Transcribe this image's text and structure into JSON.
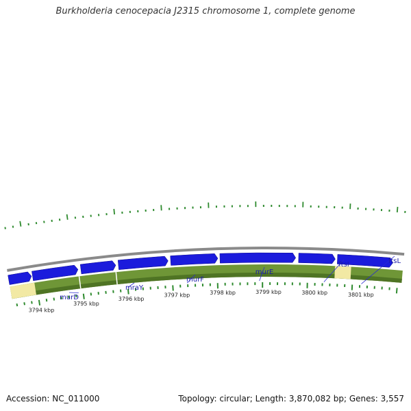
{
  "header": {
    "title": "Burkholderia cenocepacia J2315 chromosome 1, complete genome"
  },
  "footer": {
    "accession_label": "Accession: NC_011000",
    "summary": "Topology: circular; Length: 3,870,082 bp; Genes: 3,557"
  },
  "map": {
    "colors": {
      "backbone": "#8a8a8a",
      "cds_forward": "#1b1bdc",
      "cds_reverse_light": "#6f9637",
      "cds_reverse_dark": "#4f7424",
      "noncoding": "#f2e9a4",
      "tick": "#2e8a2e",
      "gene_label": "#1a1aa8",
      "callout_line": "#2a2ad0"
    },
    "kbp_ticks": [
      {
        "kbp": 3794,
        "label": "3794 kbp"
      },
      {
        "kbp": 3795,
        "label": "3795 kbp"
      },
      {
        "kbp": 3796,
        "label": "3796 kbp"
      },
      {
        "kbp": 3797,
        "label": "3797 kbp"
      },
      {
        "kbp": 3798,
        "label": "3798 kbp"
      },
      {
        "kbp": 3799,
        "label": "3799 kbp"
      },
      {
        "kbp": 3800,
        "label": "3800 kbp"
      },
      {
        "kbp": 3801,
        "label": "3801 kbp"
      }
    ],
    "genes": [
      {
        "name": "murD"
      },
      {
        "name": "mraY"
      },
      {
        "name": "murF"
      },
      {
        "name": "murE"
      },
      {
        "name": "ftsI"
      },
      {
        "name": "ftsL"
      }
    ]
  }
}
